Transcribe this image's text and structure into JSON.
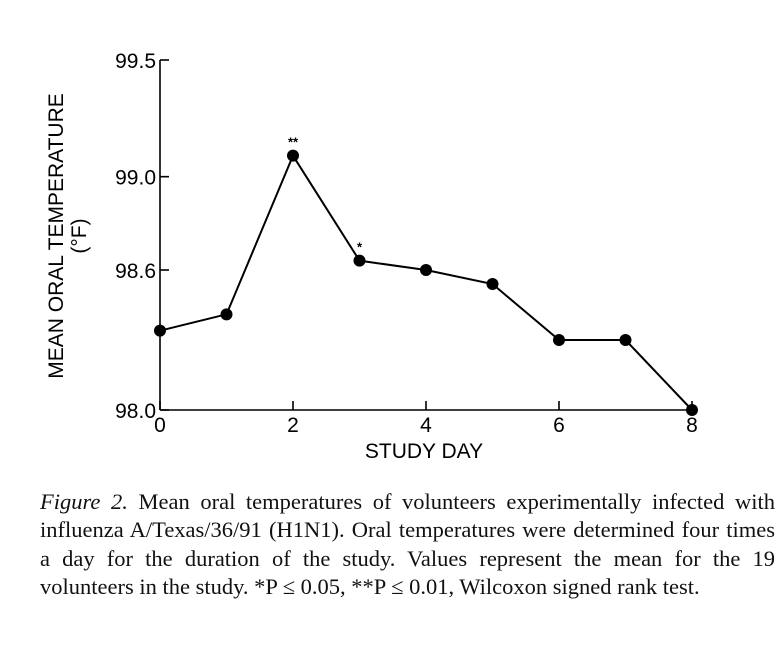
{
  "chart_data": {
    "type": "line",
    "xlabel": "STUDY DAY",
    "ylabel": "MEAN ORAL TEMPERATURE",
    "ylabel_unit": "(°F)",
    "x": [
      0,
      1,
      2,
      3,
      4,
      5,
      6,
      7,
      8
    ],
    "y": [
      98.34,
      98.41,
      99.09,
      98.64,
      98.6,
      98.54,
      98.3,
      98.3,
      98.0
    ],
    "point_annotations": [
      "",
      "",
      "**",
      "*",
      "",
      "",
      "",
      "",
      ""
    ],
    "xlim": [
      0,
      8
    ],
    "ylim": [
      98.0,
      99.5
    ],
    "xticks": [
      0,
      2,
      4,
      6,
      8
    ],
    "xtick_labels": [
      "0",
      "2",
      "4",
      "6",
      "8"
    ],
    "yticks": [
      98.0,
      98.6,
      99.0,
      99.5
    ],
    "ytick_labels": [
      "98.0",
      "98.6",
      "99.0",
      "99.5"
    ],
    "grid": false,
    "line_color": "#000000",
    "marker_color": "#000000"
  },
  "caption": {
    "label": "Figure 2.",
    "text": "Mean oral temperatures of volunteers experimentally infected with influenza A/Texas/36/91 (H1N1). Oral temperatures were determined four times a day for the duration of the study. Values represent the mean for the 19 volunteers in the study. *P ≤ 0.05, **P ≤ 0.01, Wilcoxon signed rank test."
  }
}
